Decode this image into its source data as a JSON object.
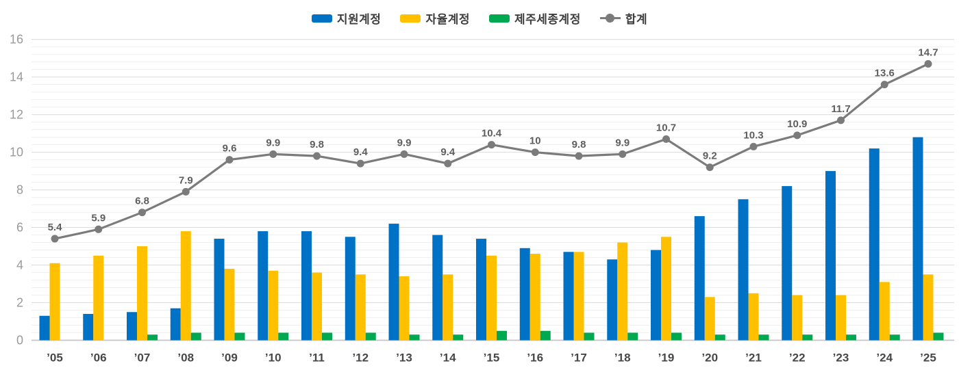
{
  "chart_data": {
    "type": "bar+line",
    "title": "",
    "categories": [
      "’05",
      "’06",
      "’07",
      "’08",
      "’09",
      "’10",
      "’11",
      "’12",
      "’13",
      "’14",
      "’15",
      "’16",
      "’17",
      "’18",
      "’19",
      "’20",
      "’21",
      "’22",
      "’23",
      "’24",
      "’25"
    ],
    "series": [
      {
        "name": "지원계정",
        "type": "bar",
        "color": "#0072C6",
        "values": [
          1.3,
          1.4,
          1.5,
          1.7,
          5.4,
          5.8,
          5.8,
          5.5,
          6.2,
          5.6,
          5.4,
          4.9,
          4.7,
          4.3,
          4.8,
          6.6,
          7.5,
          8.2,
          9.0,
          10.2,
          10.8
        ]
      },
      {
        "name": "자율계정",
        "type": "bar",
        "color": "#FFC000",
        "values": [
          4.1,
          4.5,
          5.0,
          5.8,
          3.8,
          3.7,
          3.6,
          3.5,
          3.4,
          3.5,
          4.5,
          4.6,
          4.7,
          5.2,
          5.5,
          2.3,
          2.5,
          2.4,
          2.4,
          3.1,
          3.5
        ]
      },
      {
        "name": "제주세종계정",
        "type": "bar",
        "color": "#00A84F",
        "values": [
          0,
          0,
          0.3,
          0.4,
          0.4,
          0.4,
          0.4,
          0.4,
          0.3,
          0.3,
          0.5,
          0.5,
          0.4,
          0.4,
          0.4,
          0.3,
          0.3,
          0.3,
          0.3,
          0.3,
          0.4
        ]
      },
      {
        "name": "합계",
        "type": "line",
        "color": "#7B7B7B",
        "values": [
          5.4,
          5.9,
          6.8,
          7.9,
          9.6,
          9.9,
          9.8,
          9.4,
          9.9,
          9.4,
          10.4,
          10,
          9.8,
          9.9,
          10.7,
          9.2,
          10.3,
          10.9,
          11.7,
          13.6,
          14.7
        ],
        "point_labels": [
          "5.4",
          "5.9",
          "6.8",
          "7.9",
          "9.6",
          "9.9",
          "9.8",
          "9.4",
          "9.9",
          "9.4",
          "10.4",
          "10",
          "9.8",
          "9.9",
          "10.7",
          "9.2",
          "10.3",
          "10.9",
          "11.7",
          "13.6",
          "14.7"
        ]
      }
    ],
    "ylim": [
      0,
      16
    ],
    "y_ticks": [
      0,
      2,
      4,
      6,
      8,
      10,
      12,
      14,
      16
    ],
    "grid": {
      "horizontal": true,
      "minor_step": 0.4,
      "vertical": false
    },
    "legend_position": "top"
  }
}
